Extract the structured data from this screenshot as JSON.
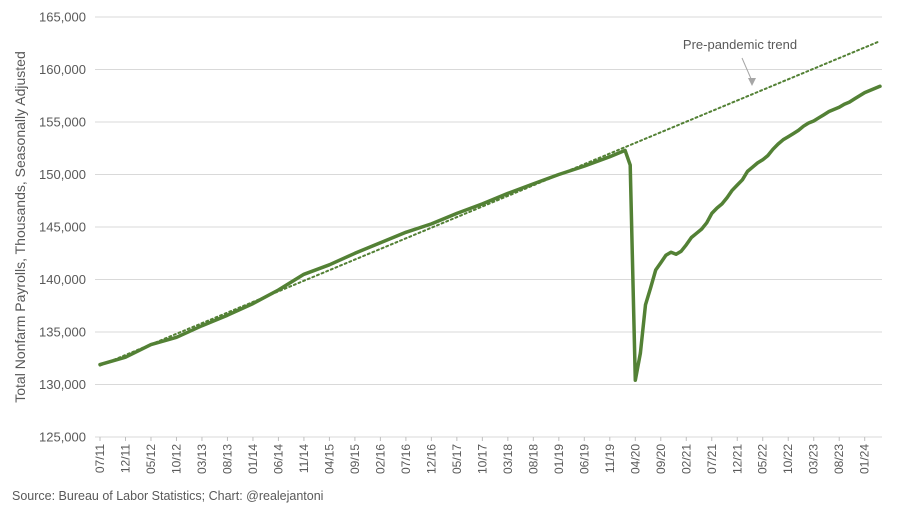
{
  "chart_data": {
    "type": "line",
    "title": "",
    "ylabel": "Total Nonfarm Payrolls, Thousands, Seasonally Adjusted",
    "ylim": [
      125000,
      165000
    ],
    "y_ticks": [
      "125,000",
      "130,000",
      "135,000",
      "140,000",
      "145,000",
      "150,000",
      "155,000",
      "160,000",
      "165,000"
    ],
    "y_tick_values": [
      125000,
      130000,
      135000,
      140000,
      145000,
      150000,
      155000,
      160000,
      165000
    ],
    "x_ticks": [
      "07/11",
      "12/11",
      "05/12",
      "10/12",
      "03/13",
      "08/13",
      "01/14",
      "06/14",
      "11/14",
      "04/15",
      "09/15",
      "02/16",
      "07/16",
      "12/16",
      "05/17",
      "10/17",
      "03/18",
      "08/18",
      "01/19",
      "06/19",
      "11/19",
      "04/20",
      "09/20",
      "02/21",
      "07/21",
      "12/21",
      "05/22",
      "10/22",
      "03/23",
      "08/23",
      "01/24"
    ],
    "x_range": [
      "2011-07",
      "2024-04"
    ],
    "grid": true,
    "legend": "none",
    "annotation": "Pre-pandemic trend",
    "source_note": "Source: Bureau of Labor Statistics; Chart: @realejantoni",
    "colors": {
      "series": "#538135",
      "trend": "#538135",
      "grid": "#d9d9d9",
      "text": "#595959"
    },
    "series": [
      {
        "name": "",
        "style": "solid",
        "points": [
          [
            "2011-07",
            131900
          ],
          [
            "2011-12",
            132600
          ],
          [
            "2012-05",
            133800
          ],
          [
            "2012-10",
            134500
          ],
          [
            "2013-03",
            135600
          ],
          [
            "2013-08",
            136600
          ],
          [
            "2014-01",
            137700
          ],
          [
            "2014-06",
            139000
          ],
          [
            "2014-11",
            140500
          ],
          [
            "2015-04",
            141400
          ],
          [
            "2015-09",
            142500
          ],
          [
            "2016-02",
            143500
          ],
          [
            "2016-07",
            144500
          ],
          [
            "2016-12",
            145300
          ],
          [
            "2017-05",
            146300
          ],
          [
            "2017-10",
            147200
          ],
          [
            "2018-03",
            148200
          ],
          [
            "2018-08",
            149100
          ],
          [
            "2019-01",
            150000
          ],
          [
            "2019-06",
            150800
          ],
          [
            "2019-11",
            151700
          ],
          [
            "2020-02",
            152300
          ],
          [
            "2020-03",
            150900
          ],
          [
            "2020-04",
            130400
          ],
          [
            "2020-05",
            133000
          ],
          [
            "2020-06",
            137600
          ],
          [
            "2020-07",
            139200
          ],
          [
            "2020-08",
            140900
          ],
          [
            "2020-09",
            141600
          ],
          [
            "2020-10",
            142300
          ],
          [
            "2020-11",
            142600
          ],
          [
            "2020-12",
            142400
          ],
          [
            "2021-01",
            142700
          ],
          [
            "2021-02",
            143300
          ],
          [
            "2021-03",
            144000
          ],
          [
            "2021-04",
            144400
          ],
          [
            "2021-05",
            144800
          ],
          [
            "2021-06",
            145400
          ],
          [
            "2021-07",
            146300
          ],
          [
            "2021-08",
            146800
          ],
          [
            "2021-09",
            147200
          ],
          [
            "2021-10",
            147800
          ],
          [
            "2021-11",
            148500
          ],
          [
            "2021-12",
            149000
          ],
          [
            "2022-01",
            149500
          ],
          [
            "2022-02",
            150300
          ],
          [
            "2022-03",
            150700
          ],
          [
            "2022-04",
            151100
          ],
          [
            "2022-05",
            151400
          ],
          [
            "2022-06",
            151800
          ],
          [
            "2022-07",
            152400
          ],
          [
            "2022-08",
            152900
          ],
          [
            "2022-09",
            153300
          ],
          [
            "2022-10",
            153600
          ],
          [
            "2022-11",
            153900
          ],
          [
            "2022-12",
            154200
          ],
          [
            "2023-01",
            154600
          ],
          [
            "2023-02",
            154900
          ],
          [
            "2023-03",
            155100
          ],
          [
            "2023-04",
            155400
          ],
          [
            "2023-05",
            155700
          ],
          [
            "2023-06",
            156000
          ],
          [
            "2023-07",
            156200
          ],
          [
            "2023-08",
            156400
          ],
          [
            "2023-09",
            156700
          ],
          [
            "2023-10",
            156900
          ],
          [
            "2023-11",
            157200
          ],
          [
            "2023-12",
            157500
          ],
          [
            "2024-01",
            157800
          ],
          [
            "2024-02",
            158000
          ],
          [
            "2024-03",
            158200
          ],
          [
            "2024-04",
            158400
          ]
        ]
      },
      {
        "name": "Pre-pandemic trend",
        "style": "dotted",
        "points": [
          [
            "2011-07",
            131800
          ],
          [
            "2024-04",
            162700
          ]
        ]
      }
    ]
  }
}
